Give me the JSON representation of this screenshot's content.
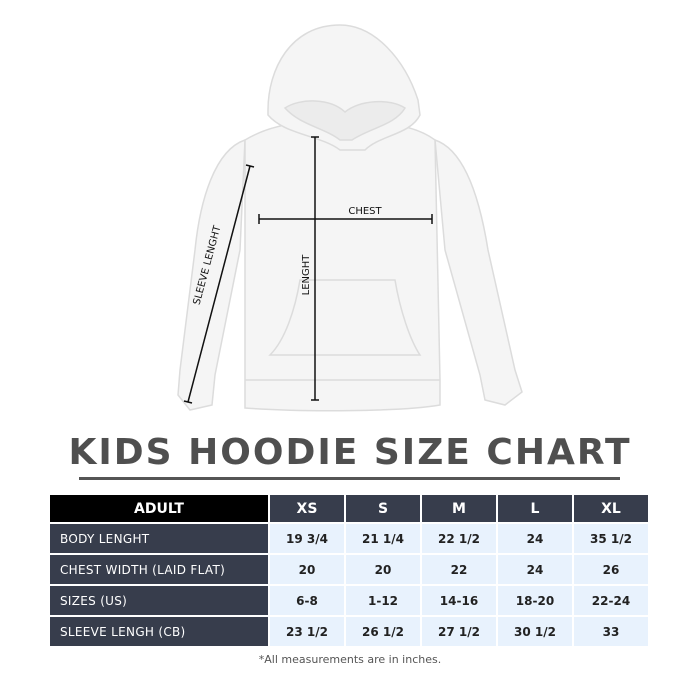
{
  "diagram": {
    "labels": {
      "chest": "CHEST",
      "length": "LENGHT",
      "sleeve": "SLEEVE LENGHT"
    },
    "garment_color": "#f4f4f4"
  },
  "title": "KIDS HOODIE SIZE CHART",
  "table": {
    "corner": "ADULT",
    "columns": [
      "XS",
      "S",
      "M",
      "L",
      "XL"
    ],
    "rows": [
      {
        "label": "BODY LENGHT",
        "values": [
          "19 3/4",
          "21 1/4",
          "22 1/2",
          "24",
          "35 1/2"
        ]
      },
      {
        "label": "CHEST WIDTH (LAID FLAT)",
        "values": [
          "20",
          "20",
          "22",
          "24",
          "26"
        ]
      },
      {
        "label": "SIZES (US)",
        "values": [
          "6-8",
          "1-12",
          "14-16",
          "18-20",
          "22-24"
        ]
      },
      {
        "label": "SLEEVE LENGH (CB)",
        "values": [
          "23 1/2",
          "26 1/2",
          "27 1/2",
          "30 1/2",
          "33"
        ]
      }
    ],
    "colors": {
      "header_dark": "#373d4c",
      "corner": "#000000",
      "cell": "#e8f2fd"
    }
  },
  "footnote": "*All measurements are in inches."
}
